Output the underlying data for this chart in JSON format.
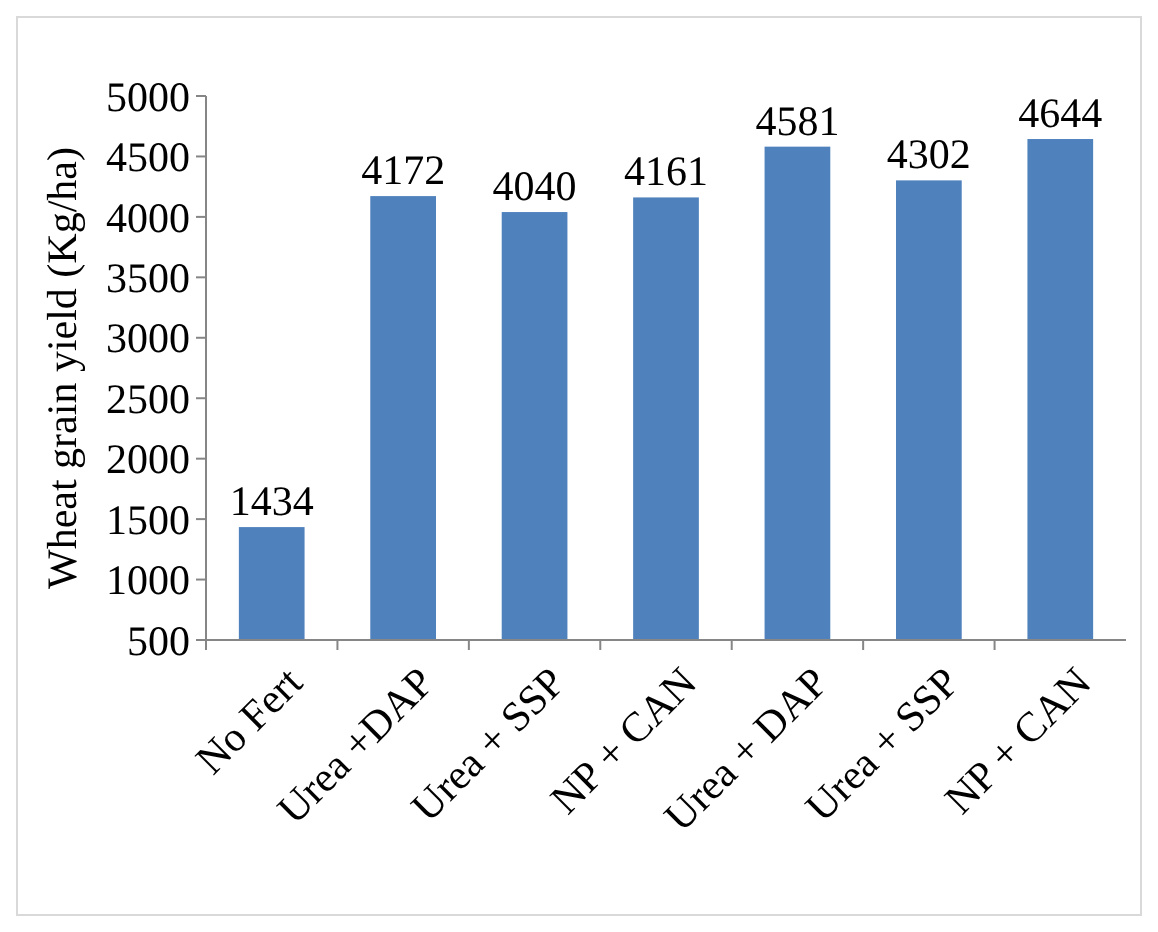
{
  "chart_data": {
    "type": "bar",
    "ylabel": "Wheat grain yield (Kg/ha)",
    "categories": [
      "No Fert",
      "Urea +DAP",
      "Urea + SSP",
      "NP + CAN",
      "Urea + DAP",
      "Urea + SSP",
      "NP + CAN"
    ],
    "values": [
      1434,
      4172,
      4040,
      4161,
      4581,
      4302,
      4644
    ],
    "color": "#4f81bd",
    "ylim": [
      500,
      5000
    ],
    "yticks": [
      500,
      1000,
      1500,
      2000,
      2500,
      3000,
      3500,
      4000,
      4500,
      5000
    ],
    "data_labels": true,
    "grid": false
  }
}
